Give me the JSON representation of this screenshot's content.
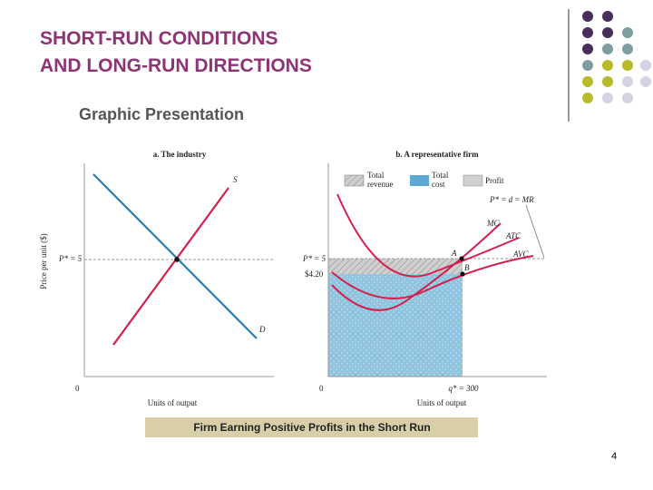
{
  "header": {
    "title_lines": [
      "SHORT-RUN CONDITIONS",
      "AND LONG-RUN DIRECTIONS"
    ],
    "subtitle": "Graphic Presentation"
  },
  "figure": {
    "panel_a": {
      "title": "a. The industry",
      "y_label": "Price per unit ($)",
      "price_label": "P* = 5",
      "origin": "0",
      "supply_label": "S",
      "demand_label": "D",
      "x_label": "Units of output"
    },
    "panel_b": {
      "title": "b. A representative firm",
      "legend": [
        {
          "lines": [
            "Total",
            "revenue"
          ]
        },
        {
          "lines": [
            "Total",
            "cost"
          ]
        },
        {
          "lines": [
            "Profit"
          ]
        }
      ],
      "demand_label": "P* = d = MR",
      "mc_label": "MC",
      "atc_label": "ATC",
      "avc_label": "AVC",
      "point_a": "A",
      "point_b": "B",
      "price_label": "P* = 5",
      "cost_label": "$4.20",
      "origin": "0",
      "quantity_label": "q* = 300",
      "x_label": "Units of output"
    }
  },
  "caption": "Firm Earning Positive Profits in the Short Run",
  "page_number": "4"
}
